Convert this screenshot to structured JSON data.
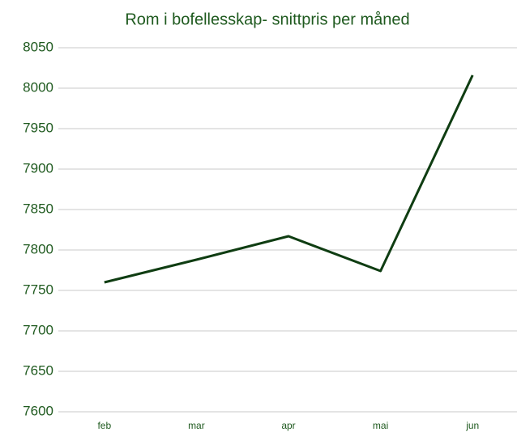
{
  "chart_data": {
    "type": "line",
    "title": "Rom i bofellesskap- snittpris per måned",
    "categories": [
      "feb",
      "mar",
      "apr",
      "mai",
      "jun"
    ],
    "values": [
      7760,
      7788,
      7817,
      7774,
      8016
    ],
    "color": "#0f3d12",
    "ylim": [
      7600,
      8050
    ],
    "yticks": [
      7600,
      7650,
      7700,
      7750,
      7800,
      7850,
      7900,
      7950,
      8000,
      8050
    ],
    "grid": true
  }
}
